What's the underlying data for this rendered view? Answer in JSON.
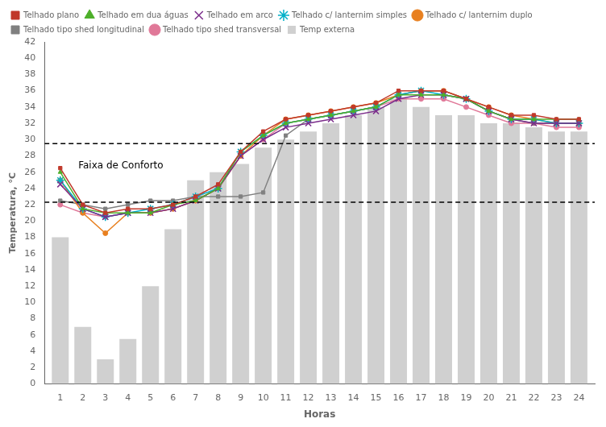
{
  "chart_data": {
    "type": "bar",
    "x_label": "Horas",
    "y_label": "Temperatura, °C",
    "x": [
      1,
      2,
      3,
      4,
      5,
      6,
      7,
      8,
      9,
      10,
      11,
      12,
      13,
      14,
      15,
      16,
      17,
      18,
      19,
      20,
      21,
      22,
      23,
      24
    ],
    "xlim": [
      0.3,
      24.7
    ],
    "xticks": [
      1,
      2,
      3,
      4,
      5,
      6,
      7,
      8,
      9,
      10,
      11,
      12,
      13,
      14,
      15,
      16,
      17,
      18,
      19,
      20,
      21,
      22,
      23,
      24
    ],
    "ylim": [
      0,
      42
    ],
    "yticks": [
      0,
      2,
      4,
      6,
      8,
      10,
      12,
      14,
      16,
      18,
      20,
      22,
      24,
      26,
      28,
      30,
      32,
      34,
      36,
      38,
      40,
      42
    ],
    "grid": false,
    "legend": "upper left",
    "series": [
      {
        "name": "Temp externa",
        "type": "bar",
        "color": "#d0d0d0",
        "values": [
          18,
          7,
          3,
          5.5,
          12,
          19,
          25,
          26,
          27,
          29,
          30,
          31,
          32,
          33,
          34,
          35,
          34,
          33,
          33,
          32,
          32,
          31.5,
          31,
          31
        ]
      },
      {
        "name": "Telhado plano",
        "type": "line",
        "color": "#c0392b",
        "marker": "square",
        "values": [
          26.5,
          22.0,
          21.0,
          21.5,
          21.5,
          22.0,
          23.0,
          24.5,
          28.5,
          31.0,
          32.5,
          33.0,
          33.5,
          34.0,
          34.5,
          36.0,
          36.0,
          36.0,
          35.0,
          34.0,
          33.0,
          33.0,
          32.5,
          32.5
        ]
      },
      {
        "name": "Telhado em dua águas",
        "type": "line",
        "color": "#4daf2a",
        "marker": "triangle",
        "values": [
          26.0,
          21.5,
          21.0,
          21.0,
          21.0,
          22.0,
          22.5,
          24.0,
          28.5,
          30.5,
          32.0,
          32.5,
          33.0,
          33.5,
          34.0,
          35.5,
          35.5,
          35.5,
          35.0,
          33.5,
          32.5,
          32.5,
          32.5,
          32.5
        ]
      },
      {
        "name": "Telhado em arco",
        "type": "line",
        "color": "#7b2d8b",
        "marker": "x",
        "values": [
          24.5,
          21.5,
          20.5,
          21.0,
          21.0,
          21.5,
          22.5,
          24.0,
          28.0,
          30.0,
          31.5,
          32.0,
          32.5,
          33.0,
          33.5,
          35.0,
          35.5,
          35.5,
          35.0,
          33.5,
          32.5,
          32.0,
          32.0,
          32.0
        ]
      },
      {
        "name": "Telhado c/ lanternim simples",
        "type": "line",
        "color": "#00b0c8",
        "marker": "star",
        "values": [
          25.0,
          21.5,
          20.5,
          21.0,
          21.5,
          22.0,
          23.0,
          24.0,
          28.5,
          30.5,
          32.0,
          32.5,
          33.0,
          33.5,
          34.0,
          35.5,
          36.0,
          35.5,
          35.0,
          33.5,
          32.5,
          32.5,
          32.0,
          32.0
        ]
      },
      {
        "name": "Telhado c/ lanternim duplo",
        "type": "line",
        "color": "#e88020",
        "marker": "circle",
        "values": [
          25.0,
          21.0,
          18.5,
          21.0,
          21.0,
          21.5,
          22.5,
          24.0,
          28.0,
          30.5,
          32.5,
          33.0,
          33.5,
          34.0,
          34.5,
          35.5,
          36.0,
          36.0,
          35.0,
          34.0,
          33.0,
          32.5,
          32.0,
          32.0
        ]
      },
      {
        "name": "Telhado tipo shed longitudinal",
        "type": "line",
        "color": "#808080",
        "marker": "square",
        "values": [
          22.5,
          22.0,
          21.5,
          22.0,
          22.5,
          22.5,
          23.0,
          23.0,
          23.0,
          23.5,
          30.5,
          32.5,
          33.0,
          33.5,
          34.0,
          35.5,
          36.0,
          36.0,
          35.0,
          33.5,
          32.5,
          32.0,
          32.0,
          32.0
        ]
      },
      {
        "name": "Telhado tipo shed transversal",
        "type": "line",
        "color": "#e07898",
        "marker": "circle",
        "values": [
          22.0,
          21.0,
          20.5,
          21.0,
          21.0,
          21.5,
          22.5,
          24.0,
          28.0,
          30.0,
          32.0,
          32.5,
          33.0,
          33.5,
          34.0,
          35.0,
          35.0,
          35.0,
          34.0,
          33.0,
          32.0,
          32.0,
          31.5,
          31.5
        ]
      }
    ],
    "reference_lines": [
      {
        "y": 22.3,
        "color": "#000000",
        "line_style": "dashed"
      },
      {
        "y": 29.5,
        "color": "#000000",
        "line_style": "dashed"
      }
    ],
    "annotations": [
      {
        "text": "Faixa de Conforto",
        "x": 1.8,
        "y": 26.5
      }
    ]
  }
}
